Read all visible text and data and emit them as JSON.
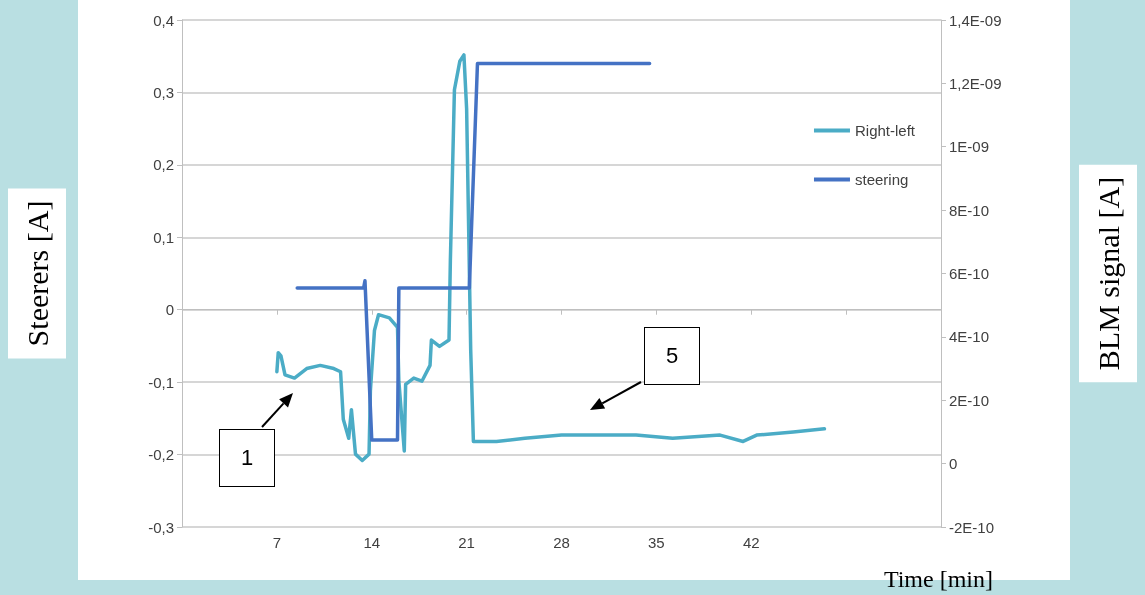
{
  "chart_data": {
    "type": "line",
    "xlabel": "Time [min]",
    "ylabel": "Steerers [A]",
    "y2label": "BLM signal [A]",
    "xlim": [
      0,
      56
    ],
    "xticks": [
      {
        "value": 0,
        "label": null
      },
      7,
      14,
      21,
      28,
      35,
      42,
      {
        "value": 49,
        "label": null
      },
      {
        "value": 56,
        "label": null
      }
    ],
    "ylim": [
      -0.3,
      0.4
    ],
    "yticks": [
      {
        "value": -0.3,
        "label": "-0,3"
      },
      {
        "value": -0.2,
        "label": "-0,2"
      },
      {
        "value": -0.1,
        "label": "-0,1"
      },
      0,
      {
        "value": 0.1,
        "label": "0,1"
      },
      {
        "value": 0.2,
        "label": "0,2"
      },
      {
        "value": 0.3,
        "label": "0,3"
      },
      {
        "value": 0.4,
        "label": "0,4"
      }
    ],
    "y2lim": [
      -2e-10,
      1.4e-09
    ],
    "y2ticks": [
      {
        "value": -2e-10,
        "label": "-2E-10"
      },
      0,
      {
        "value": 2e-10,
        "label": "2E-10"
      },
      {
        "value": 4e-10,
        "label": "4E-10"
      },
      {
        "value": 6e-10,
        "label": "6E-10"
      },
      {
        "value": 8e-10,
        "label": "8E-10"
      },
      {
        "value": 1e-09,
        "label": "1E-09"
      },
      {
        "value": 1.2e-09,
        "label": "1,2E-09"
      },
      {
        "value": 1.4e-09,
        "label": "1,4E-09"
      }
    ],
    "series": [
      {
        "name": "Right-left",
        "color": "#4bacc6",
        "axis": "y2",
        "x": [
          7.0,
          7.1,
          7.3,
          7.6,
          8.3,
          9.2,
          10.2,
          11.2,
          11.7,
          11.9,
          12.3,
          12.5,
          12.8,
          13.3,
          13.8,
          13.9,
          14.2,
          14.5,
          15.3,
          15.9,
          16.0,
          16.4,
          16.5,
          17.1,
          17.7,
          18.3,
          18.4,
          19.0,
          19.7,
          19.8,
          20.1,
          20.5,
          20.8,
          21.0,
          21.3,
          21.5,
          22.2,
          23.2,
          25.3,
          28.0,
          30.8,
          33.5,
          36.2,
          39.7,
          41.4,
          42.4,
          45.1,
          47.4
        ],
        "values": [
          2.9e-10,
          3.5e-10,
          3.4e-10,
          2.8e-10,
          2.7e-10,
          3e-10,
          3.1e-10,
          3e-10,
          2.9e-10,
          1.4e-10,
          8e-11,
          1.7e-10,
          3e-11,
          1e-11,
          3e-11,
          2.3e-10,
          4.2e-10,
          4.7e-10,
          4.6e-10,
          4.3e-10,
          2.6e-10,
          4e-11,
          2.5e-10,
          2.7e-10,
          2.6e-10,
          3.1e-10,
          3.9e-10,
          3.7e-10,
          3.9e-10,
          6.4e-10,
          1.18e-09,
          1.27e-09,
          1.29e-09,
          1.12e-09,
          3.6e-10,
          7e-11,
          7e-11,
          7e-11,
          8e-11,
          9e-11,
          9e-11,
          9e-11,
          8e-11,
          9e-11,
          7e-11,
          9e-11,
          1e-10,
          1.1e-10
        ]
      },
      {
        "name": "steering",
        "color": "#4472c4",
        "x": [
          8.5,
          13.4,
          13.5,
          14.0,
          15.9,
          16.0,
          21.2,
          21.8,
          34.5
        ],
        "values": [
          0.03,
          0.03,
          0.04,
          -0.18,
          -0.18,
          0.03,
          0.03,
          0.34,
          0.34
        ]
      }
    ],
    "annotations": [
      "1",
      "5"
    ],
    "grid": "y",
    "legend": "top right",
    "marker": "none",
    "line_style": "solid"
  }
}
